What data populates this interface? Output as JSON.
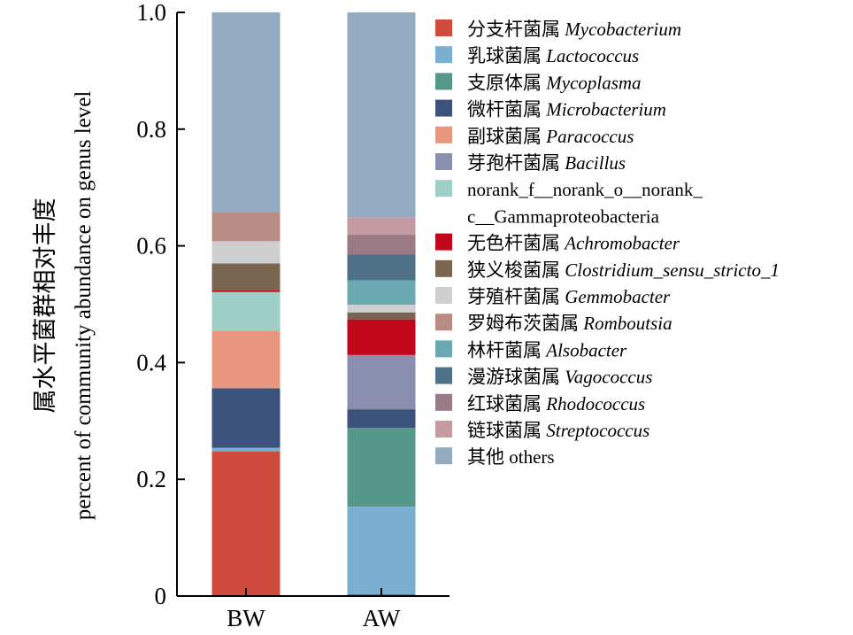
{
  "chart_data": {
    "type": "bar",
    "stacked": true,
    "categories": [
      "BW",
      "AW"
    ],
    "ylabel_cn": "属水平菌群相对丰度",
    "ylabel_en": "percent of community abundance on genus level",
    "ylim": [
      0,
      1.0
    ],
    "yticks": [
      0,
      0.2,
      0.4,
      0.6,
      0.8,
      1.0
    ],
    "ytick_labels": [
      "0",
      "0.2",
      "0.4",
      "0.6",
      "0.8",
      "1.0"
    ],
    "legend_position": "right",
    "series": [
      {
        "cn": "分支杆菌属",
        "latin": "Mycobacterium",
        "color": "#D04A3D",
        "values": [
          0.248,
          0.003
        ]
      },
      {
        "cn": "乳球菌属",
        "latin": "Lactococcus",
        "color": "#7AAFD2",
        "values": [
          0.006,
          0.15
        ]
      },
      {
        "cn": "支原体属",
        "latin": "Mycoplasma",
        "color": "#55988A",
        "values": [
          0.0,
          0.135
        ]
      },
      {
        "cn": "微杆菌属",
        "latin": "Microbacterium",
        "color": "#3B527D",
        "values": [
          0.102,
          0.032
        ]
      },
      {
        "cn": "副球菌属",
        "latin": "Paracoccus",
        "color": "#E8977E",
        "values": [
          0.099,
          0.0
        ]
      },
      {
        "cn": "芽孢杆菌属",
        "latin": "Bacillus",
        "color": "#8A8FB0",
        "values": [
          0.0,
          0.093
        ]
      },
      {
        "cn": "",
        "latin": "norank_f__norank_o__norank_",
        "latin2": "c__Gammaproteobacteria",
        "color": "#9DCFC6",
        "values": [
          0.066,
          0.0
        ]
      },
      {
        "cn": "无色杆菌属",
        "latin": "Achromobacter",
        "color": "#C0081A",
        "values": [
          0.003,
          0.061
        ]
      },
      {
        "cn": "狭义梭菌属",
        "latin": "Clostridium_sensu_stricto_1",
        "color": "#7A6650",
        "values": [
          0.046,
          0.012
        ]
      },
      {
        "cn": "芽殖杆菌属",
        "latin": "Gemmobacter",
        "color": "#CFCFD1",
        "values": [
          0.038,
          0.013
        ]
      },
      {
        "cn": "罗姆布茨菌属",
        "latin": "Romboutsia",
        "color": "#B98C83",
        "values": [
          0.05,
          0.0
        ]
      },
      {
        "cn": "林杆菌属",
        "latin": "Alsobacter",
        "color": "#6AA9B2",
        "values": [
          0.0,
          0.042
        ]
      },
      {
        "cn": "漫游球菌属",
        "latin": "Vagococcus",
        "color": "#4F7188",
        "values": [
          0.0,
          0.044
        ]
      },
      {
        "cn": "红球菌属",
        "latin": "Rhodococcus",
        "color": "#9A7A85",
        "values": [
          0.0,
          0.034
        ]
      },
      {
        "cn": "链球菌属",
        "latin": "Streptococcus",
        "color": "#C59BA1",
        "values": [
          0.0,
          0.03
        ]
      },
      {
        "cn": "其他",
        "latin": "others",
        "latin_italic": false,
        "color": "#94AAC0",
        "values": [
          0.342,
          0.351
        ]
      }
    ]
  }
}
